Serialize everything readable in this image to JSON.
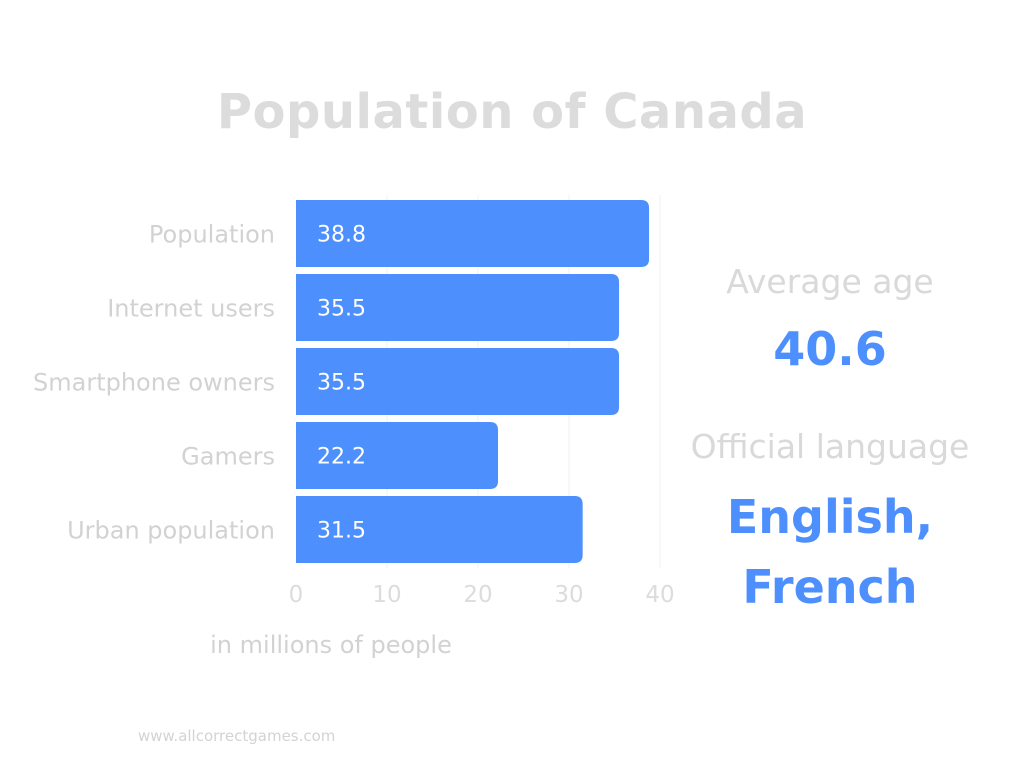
{
  "chart_data": {
    "type": "bar",
    "orientation": "horizontal",
    "title": "Population of Canada",
    "categories": [
      "Population",
      "Internet users",
      "Smartphone owners",
      "Gamers",
      "Urban population"
    ],
    "values": [
      38.8,
      35.5,
      35.5,
      22.2,
      31.5
    ],
    "data_labels": [
      "38.8",
      "35.5",
      "35.5",
      "22.2",
      "31.5"
    ],
    "xlabel": "in millions of people",
    "ylabel": "",
    "xlim": [
      0,
      40
    ],
    "xticks": [
      0,
      10,
      20,
      30,
      40
    ],
    "grid": "vertical",
    "legend": "none"
  },
  "colors": {
    "bar": "#4d8ffc",
    "muted_text": "#d9d9d9",
    "accent_text": "#4d8ffc"
  },
  "info": {
    "average_age_label": "Average age",
    "average_age_value": "40.6",
    "language_label": "Official language",
    "language_line1": "English,",
    "language_line2": "French"
  },
  "footer": {
    "url": "www.allcorrectgames.com"
  }
}
